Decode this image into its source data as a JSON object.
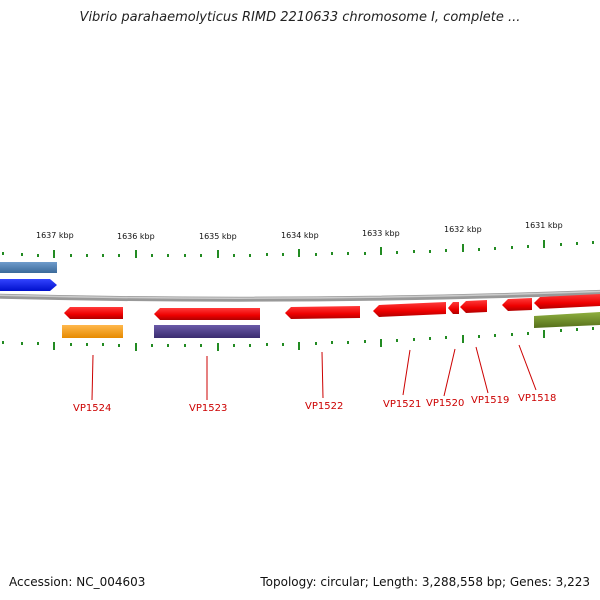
{
  "header": {
    "title": "Vibrio parahaemolyticus RIMD 2210633 chromosome I, complete ..."
  },
  "footer": {
    "accession": "Accession: NC_004603",
    "summary": "Topology: circular; Length: 3,288,558 bp; Genes: 3,223"
  },
  "scale_labels": [
    "1637 kbp",
    "1636 kbp",
    "1635 kbp",
    "1634 kbp",
    "1633 kbp",
    "1632 kbp",
    "1631 kbp"
  ],
  "gene_labels": [
    "VP1524",
    "VP1523",
    "VP1522",
    "VP1521",
    "VP1520",
    "VP1519",
    "VP1518"
  ],
  "colors": {
    "cds": "#ee0000",
    "backbone": "#888888",
    "ticks": "#228b22",
    "label": "#cc0000",
    "feature_orange": "#ff9900",
    "feature_purple": "#4b3a8c",
    "feature_steelblue": "#4a7fb5",
    "feature_blue": "#0a1fff",
    "feature_olive": "#6b8e23"
  }
}
